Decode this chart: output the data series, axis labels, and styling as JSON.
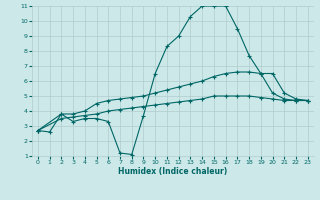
{
  "xlabel": "Humidex (Indice chaleur)",
  "bg_color": "#cce8e8",
  "grid_color": "#b0cccc",
  "line_color": "#006666",
  "xlim": [
    -0.5,
    23.5
  ],
  "ylim": [
    1,
    11
  ],
  "xticks": [
    0,
    1,
    2,
    3,
    4,
    5,
    6,
    7,
    8,
    9,
    10,
    11,
    12,
    13,
    14,
    15,
    16,
    17,
    18,
    19,
    20,
    21,
    22,
    23
  ],
  "yticks": [
    1,
    2,
    3,
    4,
    5,
    6,
    7,
    8,
    9,
    10,
    11
  ],
  "line1_x": [
    0,
    1,
    2,
    3,
    4,
    5,
    6,
    7,
    8,
    9,
    10,
    11,
    12,
    13,
    14,
    15,
    16,
    17,
    18,
    19,
    20,
    21,
    22,
    23
  ],
  "line1_y": [
    2.7,
    2.6,
    3.8,
    3.3,
    3.5,
    3.5,
    3.3,
    1.2,
    1.1,
    3.7,
    6.5,
    8.3,
    9.0,
    10.3,
    11.0,
    11.0,
    11.0,
    9.5,
    7.7,
    6.5,
    5.2,
    4.8,
    4.7,
    4.7
  ],
  "line2_x": [
    0,
    2,
    3,
    4,
    5,
    6,
    7,
    8,
    9,
    10,
    11,
    12,
    13,
    14,
    15,
    16,
    17,
    18,
    19,
    20,
    21,
    22,
    23
  ],
  "line2_y": [
    2.7,
    3.8,
    3.8,
    4.0,
    4.5,
    4.7,
    4.8,
    4.9,
    5.0,
    5.2,
    5.4,
    5.6,
    5.8,
    6.0,
    6.3,
    6.5,
    6.6,
    6.6,
    6.5,
    6.5,
    5.2,
    4.8,
    4.7
  ],
  "line3_x": [
    0,
    2,
    3,
    4,
    5,
    6,
    7,
    8,
    9,
    10,
    11,
    12,
    13,
    14,
    15,
    16,
    17,
    18,
    19,
    20,
    21,
    22,
    23
  ],
  "line3_y": [
    2.7,
    3.5,
    3.6,
    3.7,
    3.8,
    4.0,
    4.1,
    4.2,
    4.3,
    4.4,
    4.5,
    4.6,
    4.7,
    4.8,
    5.0,
    5.0,
    5.0,
    5.0,
    4.9,
    4.8,
    4.7,
    4.7,
    4.7
  ]
}
